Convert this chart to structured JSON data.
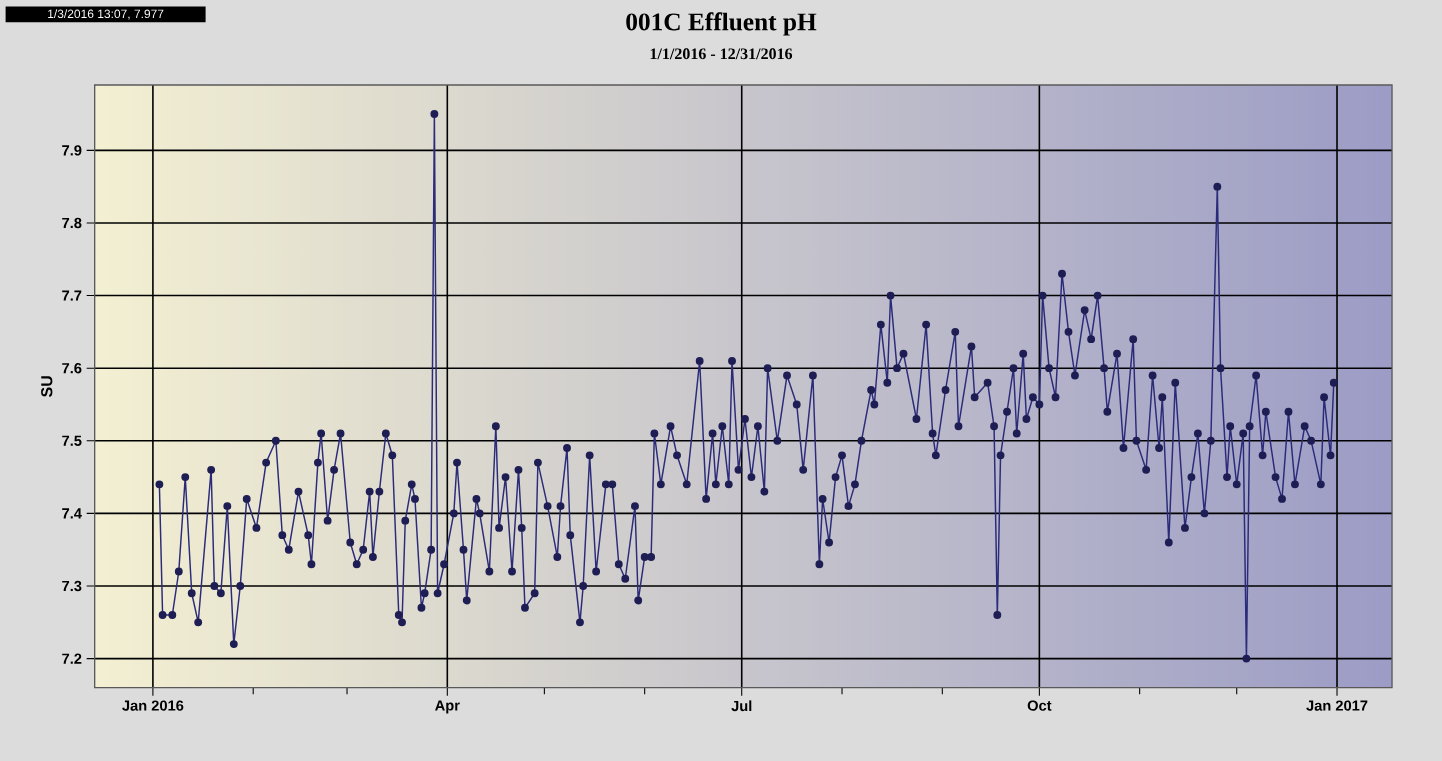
{
  "chart_data": {
    "type": "line",
    "title": "001C Effluent pH",
    "subtitle": "1/1/2016 - 12/31/2016",
    "ylabel": "SU",
    "annotations": [
      "1/3/2016 13:07, 7.977"
    ],
    "x": [
      "2016-01-03",
      "2016-01-04",
      "2016-01-07",
      "2016-01-09",
      "2016-01-11",
      "2016-01-13",
      "2016-01-15",
      "2016-01-19",
      "2016-01-20",
      "2016-01-22",
      "2016-01-24",
      "2016-01-26",
      "2016-01-28",
      "2016-01-30",
      "2016-02-02",
      "2016-02-05",
      "2016-02-08",
      "2016-02-10",
      "2016-02-12",
      "2016-02-15",
      "2016-02-18",
      "2016-02-19",
      "2016-02-21",
      "2016-02-22",
      "2016-02-24",
      "2016-02-26",
      "2016-02-28",
      "2016-03-02",
      "2016-03-04",
      "2016-03-06",
      "2016-03-08",
      "2016-03-09",
      "2016-03-11",
      "2016-03-13",
      "2016-03-15",
      "2016-03-17",
      "2016-03-18",
      "2016-03-19",
      "2016-03-21",
      "2016-03-22",
      "2016-03-24",
      "2016-03-25",
      "2016-03-27",
      "2016-03-28",
      "2016-03-29",
      "2016-03-31",
      "2016-04-03",
      "2016-04-04",
      "2016-04-06",
      "2016-04-07",
      "2016-04-10",
      "2016-04-11",
      "2016-04-14",
      "2016-04-16",
      "2016-04-17",
      "2016-04-19",
      "2016-04-21",
      "2016-04-23",
      "2016-04-24",
      "2016-04-25",
      "2016-04-28",
      "2016-04-29",
      "2016-05-02",
      "2016-05-05",
      "2016-05-06",
      "2016-05-08",
      "2016-05-09",
      "2016-05-12",
      "2016-05-13",
      "2016-05-15",
      "2016-05-17",
      "2016-05-20",
      "2016-05-22",
      "2016-05-24",
      "2016-05-26",
      "2016-05-29",
      "2016-05-30",
      "2016-06-01",
      "2016-06-03",
      "2016-06-04",
      "2016-06-06",
      "2016-06-09",
      "2016-06-11",
      "2016-06-14",
      "2016-06-18",
      "2016-06-20",
      "2016-06-22",
      "2016-06-23",
      "2016-06-25",
      "2016-06-27",
      "2016-06-28",
      "2016-06-30",
      "2016-07-02",
      "2016-07-04",
      "2016-07-06",
      "2016-07-08",
      "2016-07-09",
      "2016-07-12",
      "2016-07-15",
      "2016-07-18",
      "2016-07-20",
      "2016-07-23",
      "2016-07-25",
      "2016-07-26",
      "2016-07-28",
      "2016-07-30",
      "2016-08-01",
      "2016-08-03",
      "2016-08-05",
      "2016-08-07",
      "2016-08-10",
      "2016-08-11",
      "2016-08-13",
      "2016-08-15",
      "2016-08-16",
      "2016-08-18",
      "2016-08-20",
      "2016-08-24",
      "2016-08-27",
      "2016-08-29",
      "2016-08-30",
      "2016-09-02",
      "2016-09-05",
      "2016-09-06",
      "2016-09-10",
      "2016-09-11",
      "2016-09-15",
      "2016-09-17",
      "2016-09-18",
      "2016-09-19",
      "2016-09-21",
      "2016-09-23",
      "2016-09-24",
      "2016-09-26",
      "2016-09-27",
      "2016-09-29",
      "2016-10-01",
      "2016-10-02",
      "2016-10-04",
      "2016-10-06",
      "2016-10-08",
      "2016-10-10",
      "2016-10-12",
      "2016-10-15",
      "2016-10-17",
      "2016-10-19",
      "2016-10-21",
      "2016-10-22",
      "2016-10-25",
      "2016-10-27",
      "2016-10-30",
      "2016-10-31",
      "2016-11-03",
      "2016-11-05",
      "2016-11-07",
      "2016-11-08",
      "2016-11-10",
      "2016-11-12",
      "2016-11-15",
      "2016-11-17",
      "2016-11-19",
      "2016-11-21",
      "2016-11-23",
      "2016-11-25",
      "2016-11-26",
      "2016-11-28",
      "2016-11-29",
      "2016-12-01",
      "2016-12-03",
      "2016-12-04",
      "2016-12-05",
      "2016-12-07",
      "2016-12-09",
      "2016-12-10",
      "2016-12-13",
      "2016-12-15",
      "2016-12-17",
      "2016-12-19",
      "2016-12-22",
      "2016-12-24",
      "2016-12-27",
      "2016-12-28",
      "2016-12-30",
      "2016-12-31"
    ],
    "series": [
      {
        "color": "#2b2b7a",
        "values": [
          7.44,
          7.26,
          7.26,
          7.32,
          7.45,
          7.29,
          7.25,
          7.46,
          7.3,
          7.29,
          7.41,
          7.22,
          7.3,
          7.42,
          7.38,
          7.47,
          7.5,
          7.37,
          7.35,
          7.43,
          7.37,
          7.33,
          7.47,
          7.51,
          7.39,
          7.46,
          7.51,
          7.36,
          7.33,
          7.35,
          7.43,
          7.34,
          7.43,
          7.51,
          7.48,
          7.26,
          7.25,
          7.39,
          7.44,
          7.42,
          7.27,
          7.29,
          7.35,
          7.95,
          7.29,
          7.33,
          7.4,
          7.47,
          7.35,
          7.28,
          7.42,
          7.4,
          7.32,
          7.52,
          7.38,
          7.45,
          7.32,
          7.46,
          7.38,
          7.27,
          7.29,
          7.47,
          7.41,
          7.34,
          7.41,
          7.49,
          7.37,
          7.25,
          7.3,
          7.48,
          7.32,
          7.44,
          7.44,
          7.33,
          7.31,
          7.41,
          7.28,
          7.34,
          7.34,
          7.51,
          7.44,
          7.52,
          7.48,
          7.44,
          7.61,
          7.42,
          7.51,
          7.44,
          7.52,
          7.44,
          7.61,
          7.46,
          7.53,
          7.45,
          7.52,
          7.43,
          7.6,
          7.5,
          7.59,
          7.55,
          7.46,
          7.59,
          7.33,
          7.42,
          7.36,
          7.45,
          7.48,
          7.41,
          7.44,
          7.5,
          7.57,
          7.55,
          7.66,
          7.58,
          7.7,
          7.6,
          7.62,
          7.53,
          7.66,
          7.51,
          7.48,
          7.57,
          7.65,
          7.52,
          7.63,
          7.56,
          7.58,
          7.52,
          7.26,
          7.48,
          7.54,
          7.6,
          7.51,
          7.62,
          7.53,
          7.56,
          7.55,
          7.7,
          7.6,
          7.56,
          7.73,
          7.65,
          7.59,
          7.68,
          7.64,
          7.7,
          7.6,
          7.54,
          7.62,
          7.49,
          7.64,
          7.5,
          7.46,
          7.59,
          7.49,
          7.56,
          7.36,
          7.58,
          7.38,
          7.45,
          7.51,
          7.4,
          7.5,
          7.85,
          7.6,
          7.45,
          7.52,
          7.44,
          7.51,
          7.2,
          7.52,
          7.59,
          7.48,
          7.54,
          7.45,
          7.42,
          7.54,
          7.44,
          7.52,
          7.5,
          7.44,
          7.56,
          7.48,
          7.58
        ]
      }
    ],
    "xlim": [
      "2015-12-14",
      "2017-01-18"
    ],
    "xticks": [
      {
        "value": "2016-01-01",
        "label": "Jan 2016"
      },
      {
        "value": "2016-02-01",
        "label": null
      },
      {
        "value": "2016-03-01",
        "label": null
      },
      {
        "value": "2016-04-01",
        "label": "Apr"
      },
      {
        "value": "2016-05-01",
        "label": null
      },
      {
        "value": "2016-06-01",
        "label": null
      },
      {
        "value": "2016-07-01",
        "label": "Jul"
      },
      {
        "value": "2016-08-01",
        "label": null
      },
      {
        "value": "2016-09-01",
        "label": null
      },
      {
        "value": "2016-10-01",
        "label": "Oct"
      },
      {
        "value": "2016-11-01",
        "label": null
      },
      {
        "value": "2016-12-01",
        "label": null
      },
      {
        "value": "2017-01-01",
        "label": "Jan 2017"
      }
    ],
    "ylim": [
      7.16,
      7.99
    ],
    "yticks": [
      7.2,
      7.3,
      7.4,
      7.5,
      7.6,
      7.7,
      7.8,
      7.9
    ],
    "grid": true,
    "marker": "circle",
    "line_style": "solid",
    "legend": false
  }
}
